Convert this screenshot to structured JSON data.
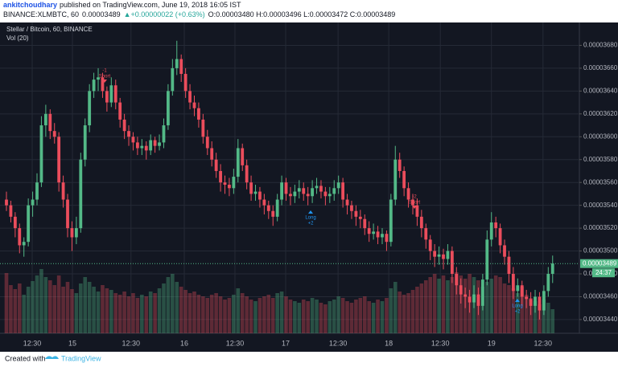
{
  "header": {
    "author": "ankitchoudhary",
    "published": "published on TradingView.com, June 19, 2018 16:05 IST",
    "symbol": "BINANCE:XLMBTC, 60",
    "last": "0.00003489",
    "change": "▲+0.00000022 (+0.63%)",
    "ohlc": "O:0.00003480 H:0.00003496 L:0.00003472 C:0.00003489"
  },
  "chart_data": {
    "type": "candlestick",
    "legend": [
      "Stellar / Bitcoin, 60, BINANCE",
      "Vol (20)"
    ],
    "up_color": "#53b987",
    "down_color": "#eb4d5c",
    "ylim": [
      3.428e-05,
      3.7e-05
    ],
    "yticks": [
      {
        "value": 3.44e-05,
        "label": "0.00003440"
      },
      {
        "value": 3.46e-05,
        "label": "0.00003460"
      },
      {
        "value": 3.48e-05,
        "label": "0.00003480"
      },
      {
        "value": 3.5e-05,
        "label": "0.00003500"
      },
      {
        "value": 3.52e-05,
        "label": "0.00003520"
      },
      {
        "value": 3.54e-05,
        "label": "0.00003540"
      },
      {
        "value": 3.56e-05,
        "label": "0.00003560"
      },
      {
        "value": 3.58e-05,
        "label": "0.00003580"
      },
      {
        "value": 3.6e-05,
        "label": "0.00003600"
      },
      {
        "value": 3.62e-05,
        "label": "0.00003620"
      },
      {
        "value": 3.64e-05,
        "label": "0.00003640"
      },
      {
        "value": 3.66e-05,
        "label": "0.00003660"
      },
      {
        "value": 3.68e-05,
        "label": "0.00003680"
      }
    ],
    "xticks": [
      {
        "value": 5.9,
        "label": "12:30"
      },
      {
        "value": 15.1,
        "label": "15"
      },
      {
        "value": 28.5,
        "label": "12:30"
      },
      {
        "value": 40.7,
        "label": "16"
      },
      {
        "value": 52.3,
        "label": "12:30"
      },
      {
        "value": 63.9,
        "label": "17"
      },
      {
        "value": 75.9,
        "label": "12:30"
      },
      {
        "value": 87.5,
        "label": "18"
      },
      {
        "value": 99.3,
        "label": "12:30"
      },
      {
        "value": 111,
        "label": "19"
      },
      {
        "value": 122.8,
        "label": "12:30"
      }
    ],
    "grid": true,
    "candles": [
      [
        3.545e-05,
        3.552e-05,
        3.535e-05,
        3.54e-05
      ],
      [
        3.54e-05,
        3.544e-05,
        3.525e-05,
        3.53e-05
      ],
      [
        3.53e-05,
        3.534e-05,
        3.512e-05,
        3.52e-05
      ],
      [
        3.52e-05,
        3.524e-05,
        3.498e-05,
        3.505e-05
      ],
      [
        3.505e-05,
        3.512e-05,
        3.495e-05,
        3.508e-05
      ],
      [
        3.508e-05,
        3.546e-05,
        3.504e-05,
        3.54e-05
      ],
      [
        3.54e-05,
        3.552e-05,
        3.53e-05,
        3.545e-05
      ],
      [
        3.545e-05,
        3.568e-05,
        3.54e-05,
        3.56e-05
      ],
      [
        3.56e-05,
        3.618e-05,
        3.556e-05,
        3.61e-05
      ],
      [
        3.61e-05,
        3.628e-05,
        3.6e-05,
        3.62e-05
      ],
      [
        3.62e-05,
        3.624e-05,
        3.598e-05,
        3.605e-05
      ],
      [
        3.605e-05,
        3.612e-05,
        3.594e-05,
        3.6e-05
      ],
      [
        3.6e-05,
        3.604e-05,
        3.552e-05,
        3.56e-05
      ],
      [
        3.56e-05,
        3.566e-05,
        3.538e-05,
        3.545e-05
      ],
      [
        3.545e-05,
        3.55e-05,
        3.512e-05,
        3.52e-05
      ],
      [
        3.52e-05,
        3.526e-05,
        3.5e-05,
        3.512e-05
      ],
      [
        3.512e-05,
        3.53e-05,
        3.506e-05,
        3.52e-05
      ],
      [
        3.52e-05,
        3.586e-05,
        3.516e-05,
        3.58e-05
      ],
      [
        3.58e-05,
        3.616e-05,
        3.574e-05,
        3.61e-05
      ],
      [
        3.61e-05,
        3.646e-05,
        3.604e-05,
        3.64e-05
      ],
      [
        3.64e-05,
        3.656e-05,
        3.634e-05,
        3.65e-05
      ],
      [
        3.65e-05,
        3.66e-05,
        3.64e-05,
        3.652e-05
      ],
      [
        3.652e-05,
        3.656e-05,
        3.634e-05,
        3.64e-05
      ],
      [
        3.64e-05,
        3.644e-05,
        3.622e-05,
        3.63e-05
      ],
      [
        3.63e-05,
        3.652e-05,
        3.626e-05,
        3.645e-05
      ],
      [
        3.645e-05,
        3.65e-05,
        3.624e-05,
        3.63e-05
      ],
      [
        3.63e-05,
        3.634e-05,
        3.608e-05,
        3.615e-05
      ],
      [
        3.615e-05,
        3.62e-05,
        3.598e-05,
        3.605e-05
      ],
      [
        3.605e-05,
        3.61e-05,
        3.592e-05,
        3.6e-05
      ],
      [
        3.6e-05,
        3.604e-05,
        3.588e-05,
        3.595e-05
      ],
      [
        3.595e-05,
        3.6e-05,
        3.584e-05,
        3.59e-05
      ],
      [
        3.59e-05,
        3.598e-05,
        3.584e-05,
        3.592e-05
      ],
      [
        3.592e-05,
        3.596e-05,
        3.58e-05,
        3.588e-05
      ],
      [
        3.588e-05,
        3.602e-05,
        3.584e-05,
        3.597e-05
      ],
      [
        3.597e-05,
        3.6e-05,
        3.586e-05,
        3.592e-05
      ],
      [
        3.592e-05,
        3.602e-05,
        3.588e-05,
        3.595e-05
      ],
      [
        3.595e-05,
        3.616e-05,
        3.59e-05,
        3.61e-05
      ],
      [
        3.61e-05,
        3.646e-05,
        3.606e-05,
        3.64e-05
      ],
      [
        3.64e-05,
        3.668e-05,
        3.636e-05,
        3.66e-05
      ],
      [
        3.66e-05,
        3.684e-05,
        3.654e-05,
        3.668e-05
      ],
      [
        3.668e-05,
        3.672e-05,
        3.648e-05,
        3.655e-05
      ],
      [
        3.655e-05,
        3.66e-05,
        3.634e-05,
        3.64e-05
      ],
      [
        3.64e-05,
        3.646e-05,
        3.624e-05,
        3.63e-05
      ],
      [
        3.63e-05,
        3.636e-05,
        3.618e-05,
        3.625e-05
      ],
      [
        3.625e-05,
        3.63e-05,
        3.608e-05,
        3.615e-05
      ],
      [
        3.615e-05,
        3.62e-05,
        3.594e-05,
        3.6e-05
      ],
      [
        3.6e-05,
        3.606e-05,
        3.584e-05,
        3.59e-05
      ],
      [
        3.59e-05,
        3.596e-05,
        3.574e-05,
        3.58e-05
      ],
      [
        3.58e-05,
        3.586e-05,
        3.564e-05,
        3.57e-05
      ],
      [
        3.57e-05,
        3.576e-05,
        3.552e-05,
        3.56e-05
      ],
      [
        3.56e-05,
        3.566e-05,
        3.55e-05,
        3.558e-05
      ],
      [
        3.558e-05,
        3.564e-05,
        3.548e-05,
        3.555e-05
      ],
      [
        3.555e-05,
        3.572e-05,
        3.55e-05,
        3.565e-05
      ],
      [
        3.565e-05,
        3.598e-05,
        3.56e-05,
        3.59e-05
      ],
      [
        3.59e-05,
        3.594e-05,
        3.57e-05,
        3.575e-05
      ],
      [
        3.575e-05,
        3.58e-05,
        3.554e-05,
        3.56e-05
      ],
      [
        3.56e-05,
        3.566e-05,
        3.544e-05,
        3.55e-05
      ],
      [
        3.55e-05,
        3.558e-05,
        3.544e-05,
        3.552e-05
      ],
      [
        3.552e-05,
        3.556e-05,
        3.538e-05,
        3.545e-05
      ],
      [
        3.545e-05,
        3.55e-05,
        3.532e-05,
        3.54e-05
      ],
      [
        3.54e-05,
        3.544e-05,
        3.528e-05,
        3.535e-05
      ],
      [
        3.535e-05,
        3.54e-05,
        3.522e-05,
        3.53e-05
      ],
      [
        3.53e-05,
        3.55e-05,
        3.526e-05,
        3.545e-05
      ],
      [
        3.545e-05,
        3.566e-05,
        3.54e-05,
        3.56e-05
      ],
      [
        3.56e-05,
        3.564e-05,
        3.544e-05,
        3.55e-05
      ],
      [
        3.55e-05,
        3.556e-05,
        3.54e-05,
        3.548e-05
      ],
      [
        3.548e-05,
        3.558e-05,
        3.542e-05,
        3.552e-05
      ],
      [
        3.552e-05,
        3.562e-05,
        3.546e-05,
        3.555e-05
      ],
      [
        3.555e-05,
        3.56e-05,
        3.544e-05,
        3.55e-05
      ],
      [
        3.55e-05,
        3.556e-05,
        3.54e-05,
        3.548e-05
      ],
      [
        3.548e-05,
        3.562e-05,
        3.542e-05,
        3.555e-05
      ],
      [
        3.555e-05,
        3.564e-05,
        3.55e-05,
        3.557e-05
      ],
      [
        3.557e-05,
        3.562e-05,
        3.546e-05,
        3.552e-05
      ],
      [
        3.552e-05,
        3.556e-05,
        3.54e-05,
        3.548e-05
      ],
      [
        3.548e-05,
        3.556e-05,
        3.542e-05,
        3.55e-05
      ],
      [
        3.55e-05,
        3.562e-05,
        3.544e-05,
        3.555e-05
      ],
      [
        3.555e-05,
        3.566e-05,
        3.55e-05,
        3.56e-05
      ],
      [
        3.56e-05,
        3.564e-05,
        3.538e-05,
        3.545e-05
      ],
      [
        3.545e-05,
        3.55e-05,
        3.532e-05,
        3.54e-05
      ],
      [
        3.54e-05,
        3.544e-05,
        3.528e-05,
        3.535e-05
      ],
      [
        3.535e-05,
        3.54e-05,
        3.522e-05,
        3.53e-05
      ],
      [
        3.53e-05,
        3.536e-05,
        3.52e-05,
        3.528e-05
      ],
      [
        3.528e-05,
        3.532e-05,
        3.514e-05,
        3.52e-05
      ],
      [
        3.52e-05,
        3.526e-05,
        3.508e-05,
        3.515e-05
      ],
      [
        3.515e-05,
        3.524e-05,
        3.51e-05,
        3.517e-05
      ],
      [
        3.517e-05,
        3.522e-05,
        3.506e-05,
        3.512e-05
      ],
      [
        3.512e-05,
        3.52e-05,
        3.506e-05,
        3.515e-05
      ],
      [
        3.515e-05,
        3.518e-05,
        3.5e-05,
        3.508e-05
      ],
      [
        3.508e-05,
        3.55e-05,
        3.504e-05,
        3.545e-05
      ],
      [
        3.545e-05,
        3.592e-05,
        3.54e-05,
        3.58e-05
      ],
      [
        3.58e-05,
        3.586e-05,
        3.564e-05,
        3.57e-05
      ],
      [
        3.57e-05,
        3.574e-05,
        3.548e-05,
        3.555e-05
      ],
      [
        3.555e-05,
        3.56e-05,
        3.538e-05,
        3.545e-05
      ],
      [
        3.545e-05,
        3.55e-05,
        3.532e-05,
        3.54e-05
      ],
      [
        3.54e-05,
        3.546e-05,
        3.522e-05,
        3.53e-05
      ],
      [
        3.53e-05,
        3.536e-05,
        3.512e-05,
        3.52e-05
      ],
      [
        3.52e-05,
        3.524e-05,
        3.502e-05,
        3.51e-05
      ],
      [
        3.51e-05,
        3.514e-05,
        3.492e-05,
        3.5e-05
      ],
      [
        3.5e-05,
        3.506e-05,
        3.486e-05,
        3.495e-05
      ],
      [
        3.495e-05,
        3.504e-05,
        3.488e-05,
        3.497e-05
      ],
      [
        3.497e-05,
        3.502e-05,
        3.484e-05,
        3.493e-05
      ],
      [
        3.493e-05,
        3.506e-05,
        3.488e-05,
        3.5e-05
      ],
      [
        3.5e-05,
        3.504e-05,
        3.472e-05,
        3.48e-05
      ],
      [
        3.48e-05,
        3.486e-05,
        3.462e-05,
        3.47e-05
      ],
      [
        3.47e-05,
        3.476e-05,
        3.454e-05,
        3.462e-05
      ],
      [
        3.462e-05,
        3.468e-05,
        3.45e-05,
        3.46e-05
      ],
      [
        3.46e-05,
        3.466e-05,
        3.446e-05,
        3.455e-05
      ],
      [
        3.455e-05,
        3.47e-05,
        3.45e-05,
        3.462e-05
      ],
      [
        3.462e-05,
        3.468e-05,
        3.444e-05,
        3.452e-05
      ],
      [
        3.452e-05,
        3.48e-05,
        3.448e-05,
        3.475e-05
      ],
      [
        3.475e-05,
        3.518e-05,
        3.47e-05,
        3.51e-05
      ],
      [
        3.51e-05,
        3.534e-05,
        3.504e-05,
        3.525e-05
      ],
      [
        3.525e-05,
        3.53e-05,
        3.512e-05,
        3.52e-05
      ],
      [
        3.52e-05,
        3.524e-05,
        3.498e-05,
        3.505e-05
      ],
      [
        3.505e-05,
        3.51e-05,
        3.488e-05,
        3.495e-05
      ],
      [
        3.495e-05,
        3.5e-05,
        3.472e-05,
        3.48e-05
      ],
      [
        3.48e-05,
        3.486e-05,
        3.458e-05,
        3.465e-05
      ],
      [
        3.465e-05,
        3.476e-05,
        3.46e-05,
        3.47e-05
      ],
      [
        3.47e-05,
        3.474e-05,
        3.452e-05,
        3.46e-05
      ],
      [
        3.46e-05,
        3.466e-05,
        3.45e-05,
        3.458e-05
      ],
      [
        3.458e-05,
        3.464e-05,
        3.444e-05,
        3.452e-05
      ],
      [
        3.452e-05,
        3.466e-05,
        3.446e-05,
        3.46e-05
      ],
      [
        3.46e-05,
        3.464e-05,
        3.44e-05,
        3.448e-05
      ],
      [
        3.448e-05,
        3.47e-05,
        3.444e-05,
        3.465e-05
      ],
      [
        3.465e-05,
        3.486e-05,
        3.46e-05,
        3.48e-05
      ],
      [
        3.48e-05,
        3.496e-05,
        3.472e-05,
        3.489e-05
      ]
    ],
    "volume": [
      75,
      60,
      55,
      62,
      48,
      58,
      65,
      72,
      80,
      70,
      66,
      60,
      72,
      58,
      64,
      55,
      50,
      62,
      70,
      64,
      58,
      52,
      60,
      56,
      54,
      50,
      48,
      52,
      46,
      50,
      44,
      48,
      46,
      52,
      50,
      56,
      62,
      70,
      74,
      64,
      58,
      54,
      50,
      52,
      48,
      46,
      44,
      48,
      50,
      46,
      42,
      44,
      48,
      56,
      50,
      46,
      42,
      40,
      44,
      46,
      48,
      44,
      50,
      52,
      46,
      42,
      40,
      38,
      42,
      40,
      44,
      42,
      38,
      36,
      40,
      42,
      46,
      44,
      40,
      38,
      42,
      44,
      46,
      40,
      38,
      42,
      40,
      44,
      56,
      64,
      52,
      48,
      50,
      54,
      58,
      62,
      66,
      70,
      74,
      68,
      72,
      66,
      70,
      76,
      72,
      68,
      74,
      70,
      66,
      58,
      64,
      68,
      72,
      70,
      62,
      60,
      56,
      50,
      58,
      48,
      44,
      40,
      36,
      42,
      38,
      30
    ],
    "last_price": {
      "value": 3.489e-05,
      "label": "0.00003489"
    },
    "countdown": "24:37",
    "annotations": [
      {
        "label": "Short",
        "qty": "-1"
      },
      {
        "label": "Long",
        "qty": "+2"
      },
      {
        "label": "Short",
        "qty": "-2"
      },
      {
        "label": "Long",
        "qty": "+2"
      }
    ]
  },
  "footer": {
    "created": "Created with",
    "brand": "TradingView"
  }
}
